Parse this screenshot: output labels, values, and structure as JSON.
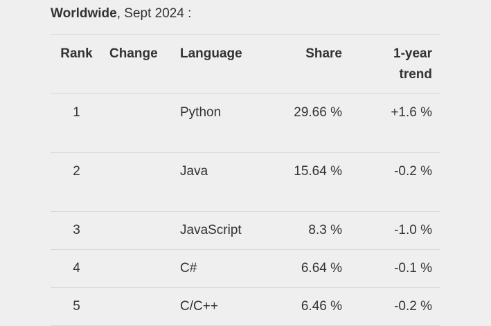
{
  "caption": {
    "region": "Worldwide",
    "rest": ", Sept 2024 :"
  },
  "table": {
    "headers": {
      "rank": "Rank",
      "change": "Change",
      "language": "Language",
      "share": "Share",
      "trend_line1": "1-year",
      "trend_line2": "trend"
    },
    "rows": [
      {
        "rank": "1",
        "change": "",
        "language": "Python",
        "share": "29.66 %",
        "trend": "+1.6 %"
      },
      {
        "rank": "2",
        "change": "",
        "language": "Java",
        "share": "15.64 %",
        "trend": "-0.2 %"
      },
      {
        "rank": "3",
        "change": "",
        "language": "JavaScript",
        "share": "8.3 %",
        "trend": "-1.0 %"
      },
      {
        "rank": "4",
        "change": "",
        "language": "C#",
        "share": "6.64 %",
        "trend": "-0.1 %"
      },
      {
        "rank": "5",
        "change": "",
        "language": "C/C++",
        "share": "6.46 %",
        "trend": "-0.2 %"
      }
    ]
  }
}
